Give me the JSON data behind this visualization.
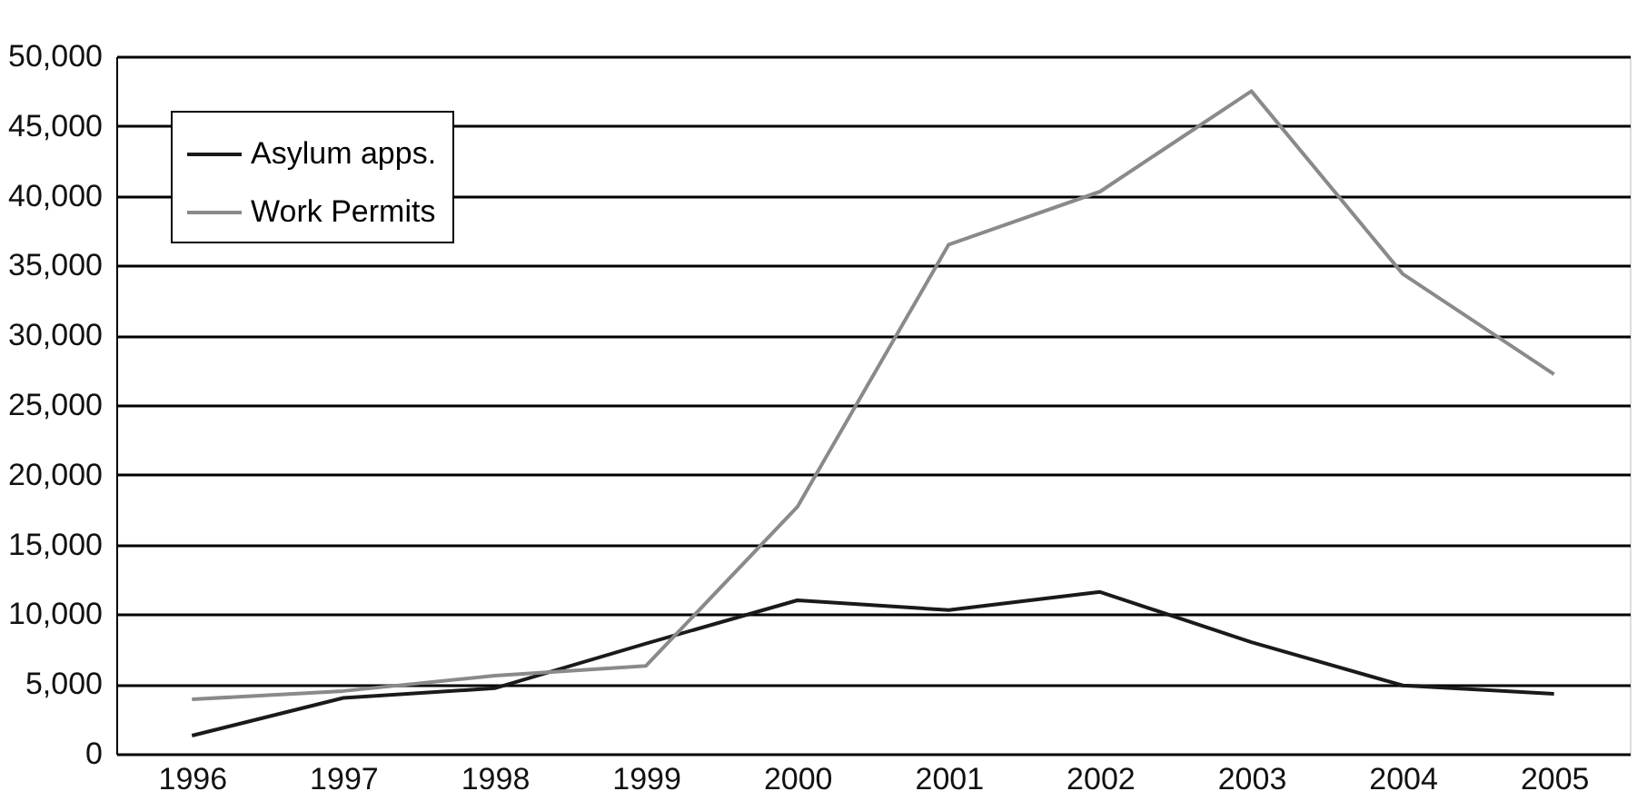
{
  "chart_data": {
    "type": "line",
    "categories": [
      "1996",
      "1997",
      "1998",
      "1999",
      "2000",
      "2001",
      "2002",
      "2003",
      "2004",
      "2005"
    ],
    "series": [
      {
        "name": "Asylum apps.",
        "color": "#1a1a1a",
        "values": [
          1300,
          4000,
          4700,
          7900,
          11000,
          10300,
          11600,
          8000,
          4900,
          4300
        ]
      },
      {
        "name": "Work Permits",
        "color": "#8a8a8a",
        "values": [
          3900,
          4500,
          5600,
          6300,
          17700,
          36500,
          40300,
          47500,
          34400,
          27200
        ]
      }
    ],
    "ylim": [
      0,
      50000
    ],
    "yticks": [
      0,
      {
        "value": 5000,
        "label": "5,000"
      },
      {
        "value": 10000,
        "label": "10,000"
      },
      {
        "value": 15000,
        "label": "15,000"
      },
      {
        "value": 20000,
        "label": "20,000"
      },
      {
        "value": 25000,
        "label": "25,000"
      },
      {
        "value": 30000,
        "label": "30,000"
      },
      {
        "value": 35000,
        "label": "35,000"
      },
      {
        "value": 40000,
        "label": "40,000"
      },
      {
        "value": 45000,
        "label": "45,000"
      },
      {
        "value": 50000,
        "label": "50,000"
      }
    ],
    "grid": "y",
    "legend": "top left",
    "marker": "none",
    "line_style": "solid"
  }
}
